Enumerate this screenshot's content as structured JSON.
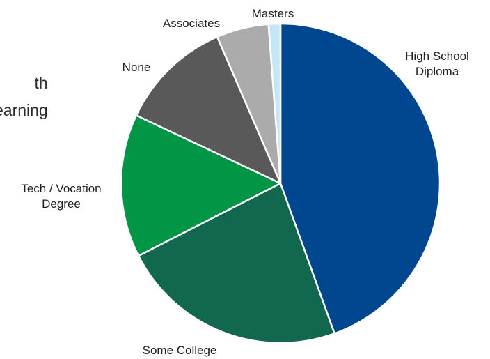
{
  "background_text": {
    "line1": "th",
    "line2": "earning"
  },
  "chart_data": {
    "type": "pie",
    "title": "",
    "slices": [
      {
        "label": "High School Diploma",
        "label_lines": [
          "High School",
          "Diploma"
        ],
        "value": 44.5,
        "color": "#00478F"
      },
      {
        "label": "Some College",
        "label_lines": [
          "Some College"
        ],
        "value": 23.0,
        "color": "#11684F"
      },
      {
        "label": "Tech / Vocation Degree",
        "label_lines": [
          "Tech / Vocation",
          "Degree"
        ],
        "value": 14.5,
        "color": "#019546"
      },
      {
        "label": "None",
        "label_lines": [
          "None"
        ],
        "value": 11.5,
        "color": "#595959"
      },
      {
        "label": "Associates",
        "label_lines": [
          "Associates"
        ],
        "value": 5.3,
        "color": "#ABABAB"
      },
      {
        "label": "Masters",
        "label_lines": [
          "Masters"
        ],
        "value": 1.2,
        "color": "#C5E6F7"
      }
    ]
  }
}
